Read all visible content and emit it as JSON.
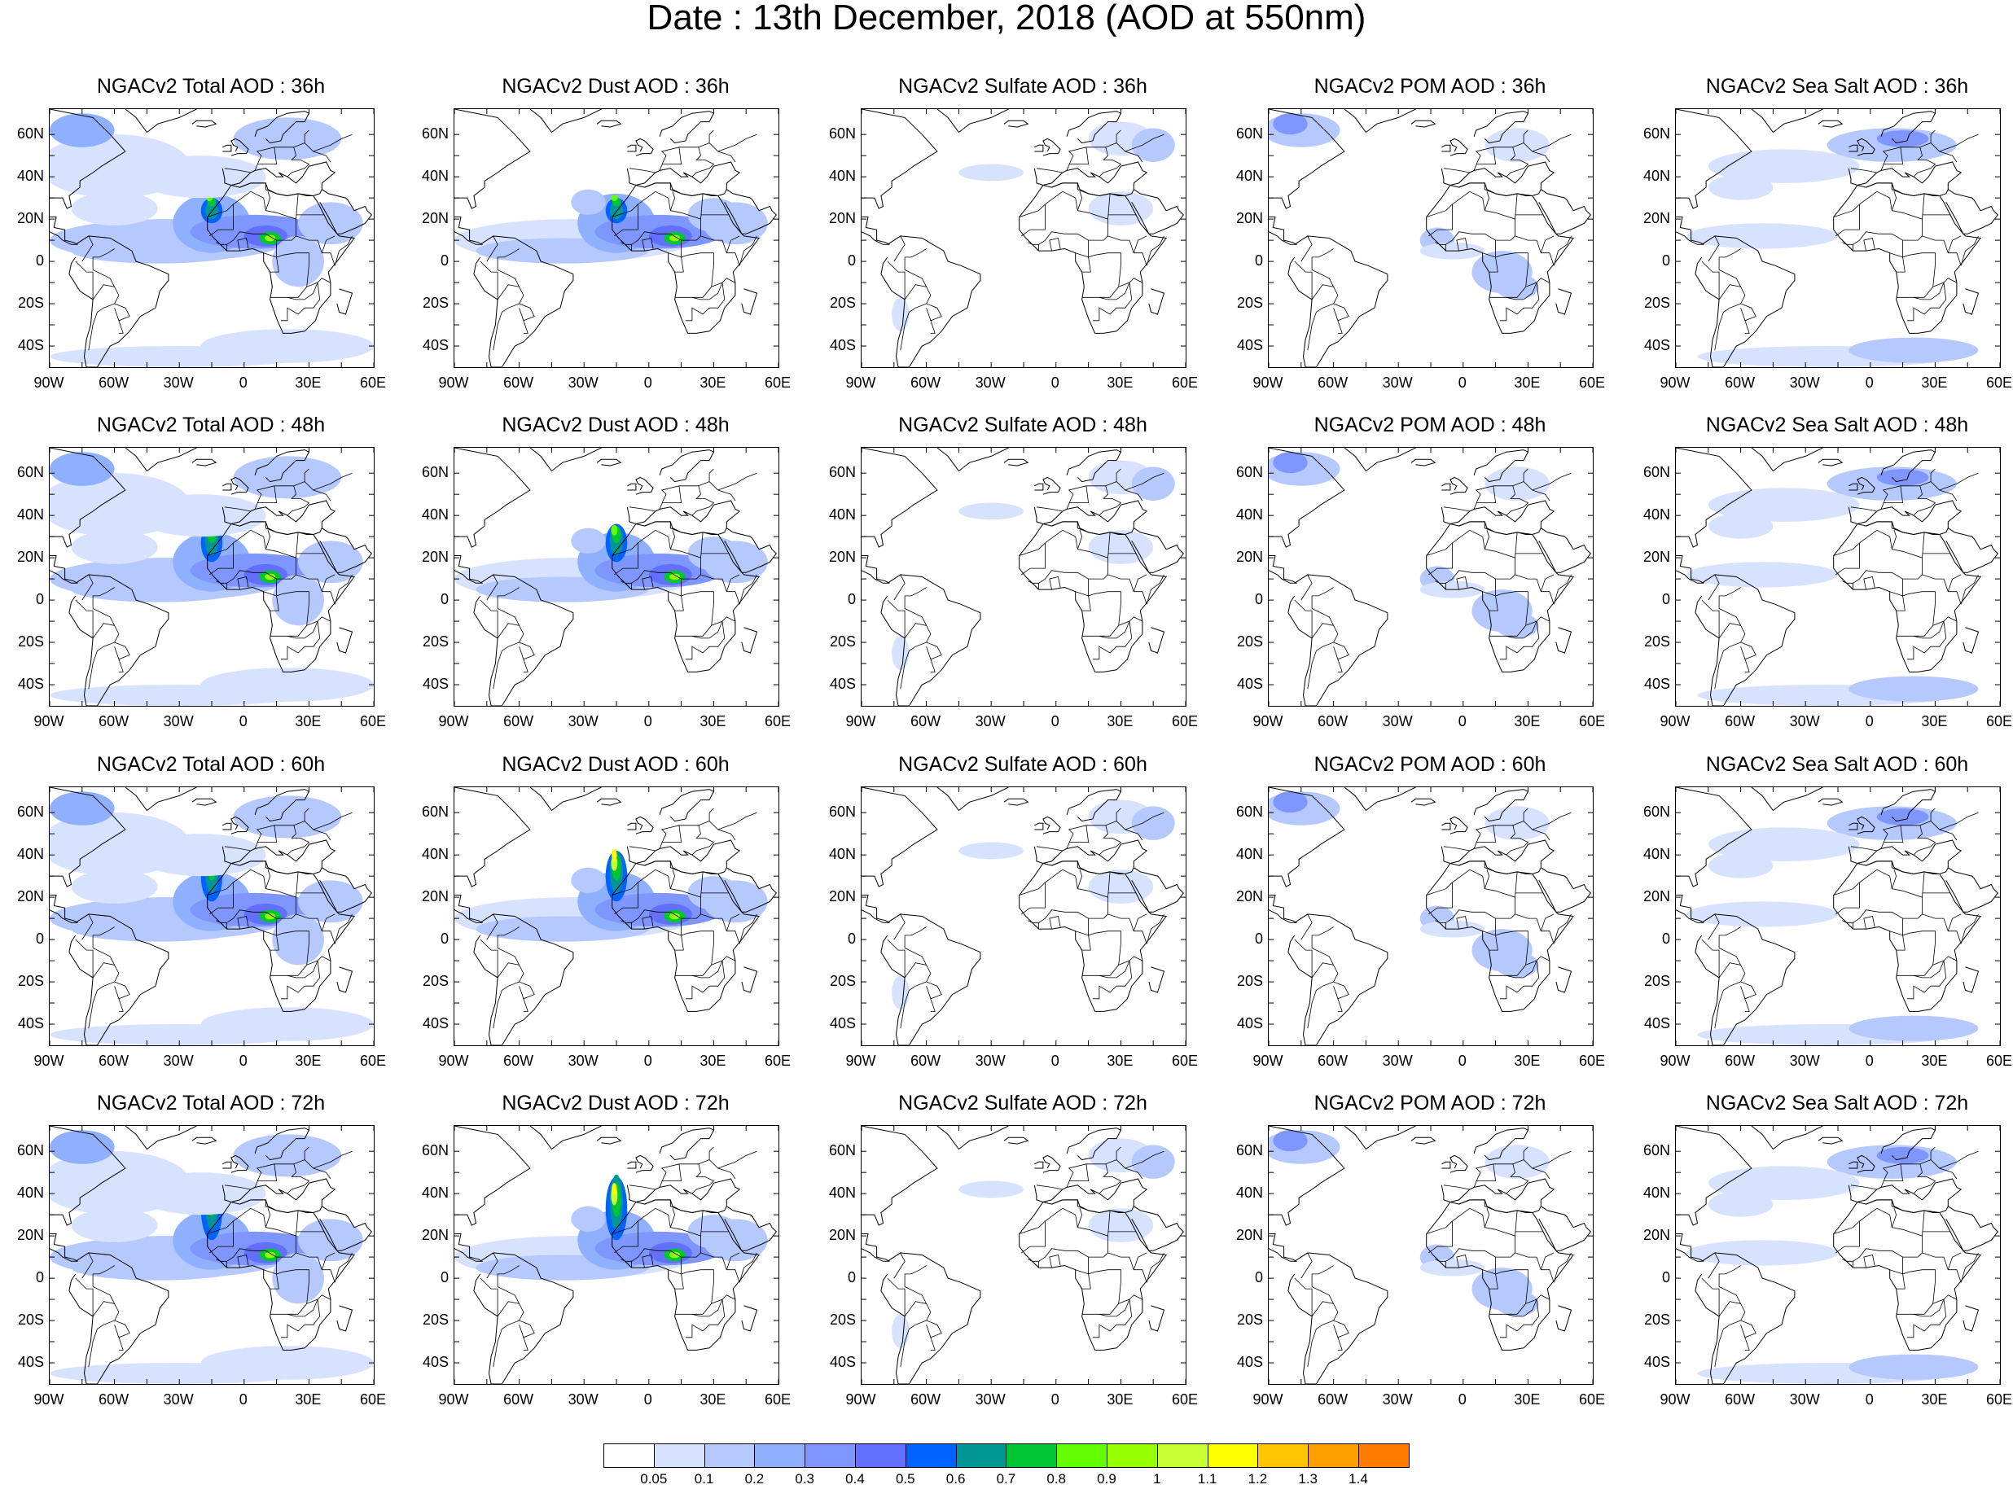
{
  "title": "Date : 13th December, 2018 (AOD at 550nm)",
  "panel_titles": [
    [
      "NGACv2 Total AOD : 36h",
      "NGACv2 Dust AOD : 36h",
      "NGACv2 Sulfate AOD : 36h",
      "NGACv2 POM AOD : 36h",
      "NGACv2 Sea Salt AOD : 36h"
    ],
    [
      "NGACv2 Total AOD : 48h",
      "NGACv2 Dust AOD : 48h",
      "NGACv2 Sulfate AOD : 48h",
      "NGACv2 POM AOD : 48h",
      "NGACv2 Sea Salt AOD : 48h"
    ],
    [
      "NGACv2 Total AOD : 60h",
      "NGACv2 Dust AOD : 60h",
      "NGACv2 Sulfate AOD : 60h",
      "NGACv2 POM AOD : 60h",
      "NGACv2 Sea Salt AOD : 60h"
    ],
    [
      "NGACv2 Total AOD : 72h",
      "NGACv2 Dust AOD : 72h",
      "NGACv2 Sulfate AOD : 72h",
      "NGACv2 POM AOD : 72h",
      "NGACv2 Sea Salt  AOD : 72h"
    ]
  ],
  "lat_labels": [
    "60N",
    "40N",
    "20N",
    "0",
    "20S",
    "40S"
  ],
  "lon_labels_default": [
    "90W",
    "60W",
    "30W",
    "0",
    "30E",
    "60E"
  ],
  "lon_labels_row4_col3": [
    "90W",
    "60W",
    "30W",
    "0",
    "30E",
    "60E"
  ],
  "colorbar": {
    "labels": [
      "0.05",
      "0.1",
      "0.2",
      "0.3",
      "0.4",
      "0.5",
      "0.6",
      "0.7",
      "0.8",
      "0.9",
      "1",
      "1.1",
      "1.2",
      "1.3",
      "1.4"
    ],
    "colors": [
      "#ffffff",
      "#d6e2ff",
      "#b5c9ff",
      "#8fb0ff",
      "#7f96ff",
      "#6370ff",
      "#0063ff",
      "#009696",
      "#00c633",
      "#63ff00",
      "#96ff00",
      "#c6ff33",
      "#ffff00",
      "#ffc600",
      "#ffa000",
      "#ff7c00",
      "#ff1900"
    ]
  },
  "panel_layers": {
    "total": "Total AOD",
    "dust": "Dust AOD",
    "sulfate": "Sulfate AOD",
    "pom": "POM AOD",
    "seasalt": "Sea Salt AOD"
  }
}
